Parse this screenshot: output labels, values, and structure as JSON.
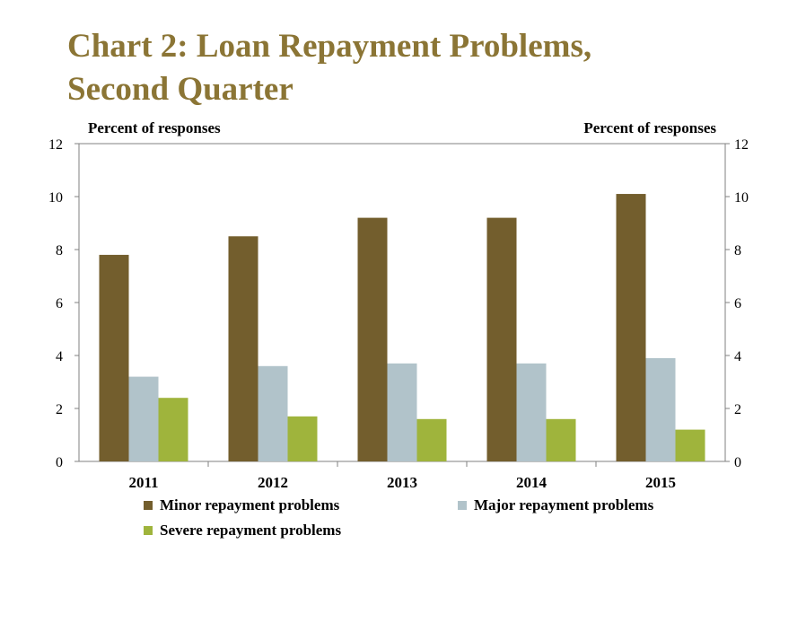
{
  "title": {
    "line1": "Chart 2: Loan Repayment Problems,",
    "line2": "Second Quarter"
  },
  "chart_data": {
    "type": "bar",
    "categories": [
      "2011",
      "2012",
      "2013",
      "2014",
      "2015"
    ],
    "series": [
      {
        "name": "Minor repayment problems",
        "color": "#735e2d",
        "values": [
          7.8,
          8.5,
          9.2,
          9.2,
          10.1
        ]
      },
      {
        "name": "Major repayment problems",
        "color": "#b1c3ca",
        "values": [
          3.2,
          3.6,
          3.7,
          3.7,
          3.9
        ]
      },
      {
        "name": "Severe repayment problems",
        "color": "#9fb43c",
        "values": [
          2.4,
          1.7,
          1.6,
          1.6,
          1.2
        ]
      }
    ],
    "ylabel_left": "Percent of responses",
    "ylabel_right": "Percent of responses",
    "ylim": [
      0,
      12
    ],
    "yticks": [
      0,
      2,
      4,
      6,
      8,
      10,
      12
    ],
    "grid": false,
    "legend_position": "bottom"
  }
}
